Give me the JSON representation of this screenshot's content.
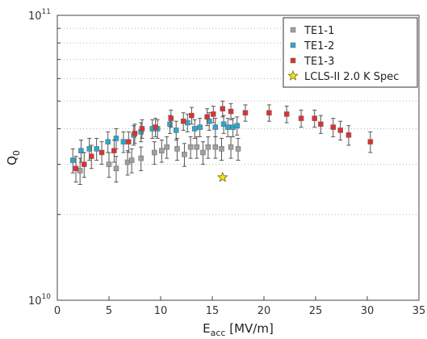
{
  "chart_data": {
    "type": "scatter",
    "x_scale": "linear",
    "y_scale": "log",
    "xlim": [
      0,
      35
    ],
    "ylim": [
      10000000000.0,
      100000000000.0
    ],
    "x_ticks": [
      "0",
      "5",
      "10",
      "15",
      "20",
      "25",
      "30",
      "35"
    ],
    "y_tick_labels": [
      {
        "value": 100000000000.0,
        "base": "10",
        "exp": "11"
      },
      {
        "value": 10000000000.0,
        "base": "10",
        "exp": "10"
      }
    ],
    "y_gridlines": [
      20000000000.0,
      30000000000.0,
      40000000000.0,
      50000000000.0,
      60000000000.0,
      70000000000.0,
      80000000000.0,
      90000000000.0
    ],
    "xlabel": {
      "main": "E",
      "sub": "acc",
      "unit": " [MV/m]"
    },
    "ylabel": {
      "main": "Q",
      "sub": "0"
    },
    "legend_position": "top-right",
    "series": [
      {
        "name": "TE1-1",
        "color": "#a0a0a0",
        "marker": "square",
        "x": [
          2.2,
          5,
          5.7,
          6.8,
          7.2,
          8.1,
          9.4,
          10.1,
          10.6,
          11.6,
          12.3,
          12.9,
          13.5,
          14.1,
          14.6,
          15.3,
          15.9,
          16.8,
          17.5
        ],
        "y": [
          28500000000.0,
          30000000000.0,
          29000000000.0,
          30500000000.0,
          31000000000.0,
          31500000000.0,
          33000000000.0,
          33500000000.0,
          34500000000.0,
          34000000000.0,
          32500000000.0,
          34500000000.0,
          34500000000.0,
          33000000000.0,
          34500000000.0,
          34500000000.0,
          34000000000.0,
          34500000000.0,
          34000000000.0
        ],
        "y_err": [
          3000000000.0,
          3000000000.0,
          3000000000.0,
          3000000000.0,
          3000000000.0,
          3000000000.0,
          3000000000.0,
          3000000000.0,
          3000000000.0,
          3000000000.0,
          3000000000.0,
          3000000000.0,
          3000000000.0,
          3000000000.0,
          3000000000.0,
          3000000000.0,
          3000000000.0,
          3000000000.0,
          3000000000.0
        ]
      },
      {
        "name": "TE1-2",
        "color": "#2aa8cc",
        "marker": "square",
        "x": [
          1.5,
          2.3,
          3.1,
          3.8,
          4.9,
          5.7,
          6.4,
          7.4,
          8.1,
          9.2,
          9.7,
          10.9,
          11.5,
          12.6,
          13.3,
          13.8,
          14.7,
          15.3,
          16.1,
          16.5,
          17.0,
          17.4
        ],
        "y": [
          31000000000.0,
          33500000000.0,
          34000000000.0,
          34000000000.0,
          36000000000.0,
          37000000000.0,
          36000000000.0,
          38000000000.0,
          39000000000.0,
          40000000000.0,
          40000000000.0,
          41500000000.0,
          39500000000.0,
          42000000000.0,
          40000000000.0,
          40500000000.0,
          42500000000.0,
          40500000000.0,
          41500000000.0,
          40500000000.0,
          40500000000.0,
          41000000000.0
        ],
        "y_err": [
          3000000000.0,
          3000000000.0,
          3000000000.0,
          3000000000.0,
          3000000000.0,
          3000000000.0,
          3000000000.0,
          3000000000.0,
          3000000000.0,
          3000000000.0,
          3000000000.0,
          3000000000.0,
          3000000000.0,
          3000000000.0,
          3000000000.0,
          3000000000.0,
          3000000000.0,
          3000000000.0,
          3000000000.0,
          3000000000.0,
          3000000000.0,
          3000000000.0
        ]
      },
      {
        "name": "TE1-3",
        "color": "#e03030",
        "marker": "square",
        "x": [
          1.8,
          2.6,
          3.3,
          4.3,
          5.5,
          6.9,
          7.5,
          8.2,
          9.5,
          11.0,
          12.2,
          13.0,
          14.5,
          15.1,
          16.0,
          16.8,
          18.2,
          20.5,
          22.2,
          23.6,
          24.9,
          25.5,
          26.7,
          27.4,
          28.2,
          30.3
        ],
        "y": [
          29000000000.0,
          30000000000.0,
          32000000000.0,
          33000000000.0,
          33500000000.0,
          36000000000.0,
          38500000000.0,
          40000000000.0,
          40500000000.0,
          43500000000.0,
          42500000000.0,
          44500000000.0,
          44000000000.0,
          45000000000.0,
          47000000000.0,
          46000000000.0,
          45500000000.0,
          45500000000.0,
          45000000000.0,
          43500000000.0,
          43500000000.0,
          41500000000.0,
          40500000000.0,
          39500000000.0,
          38000000000.0,
          36000000000.0
        ],
        "y_err": [
          3000000000.0,
          3000000000.0,
          3000000000.0,
          3000000000.0,
          3000000000.0,
          3000000000.0,
          3000000000.0,
          3000000000.0,
          3000000000.0,
          3000000000.0,
          3000000000.0,
          3000000000.0,
          3000000000.0,
          3000000000.0,
          3000000000.0,
          3000000000.0,
          3000000000.0,
          3000000000.0,
          3000000000.0,
          3000000000.0,
          3000000000.0,
          3000000000.0,
          3000000000.0,
          3000000000.0,
          3000000000.0,
          3000000000.0
        ]
      },
      {
        "name": "LCLS-II 2.0 K Spec",
        "color": "#f0e020",
        "marker": "star",
        "x": [
          16.0
        ],
        "y": [
          27000000000.0
        ]
      }
    ]
  }
}
